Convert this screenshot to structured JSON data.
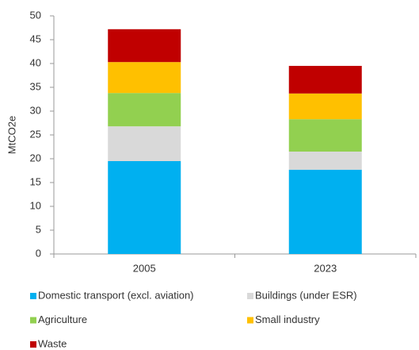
{
  "chart_data": {
    "type": "stacked_bar",
    "y_label": "MtCO2e",
    "categories": [
      "2005",
      "2023"
    ],
    "series": [
      {
        "name": "Domestic transport (excl. aviation)",
        "color": "#00b0f0",
        "values": [
          19.5,
          17.7
        ]
      },
      {
        "name": "Buildings (under ESR)",
        "color": "#d9d9d9",
        "values": [
          7.3,
          3.8
        ]
      },
      {
        "name": "Agriculture",
        "color": "#92d050",
        "values": [
          7.0,
          6.8
        ]
      },
      {
        "name": "Small industry",
        "color": "#ffc000",
        "values": [
          6.5,
          5.4
        ]
      },
      {
        "name": "Waste",
        "color": "#c00000",
        "values": [
          6.9,
          5.8
        ]
      }
    ],
    "ylim": [
      0,
      50
    ],
    "yticks": [
      0,
      5,
      10,
      15,
      20,
      25,
      30,
      35,
      40,
      45,
      50
    ],
    "grid": false
  }
}
